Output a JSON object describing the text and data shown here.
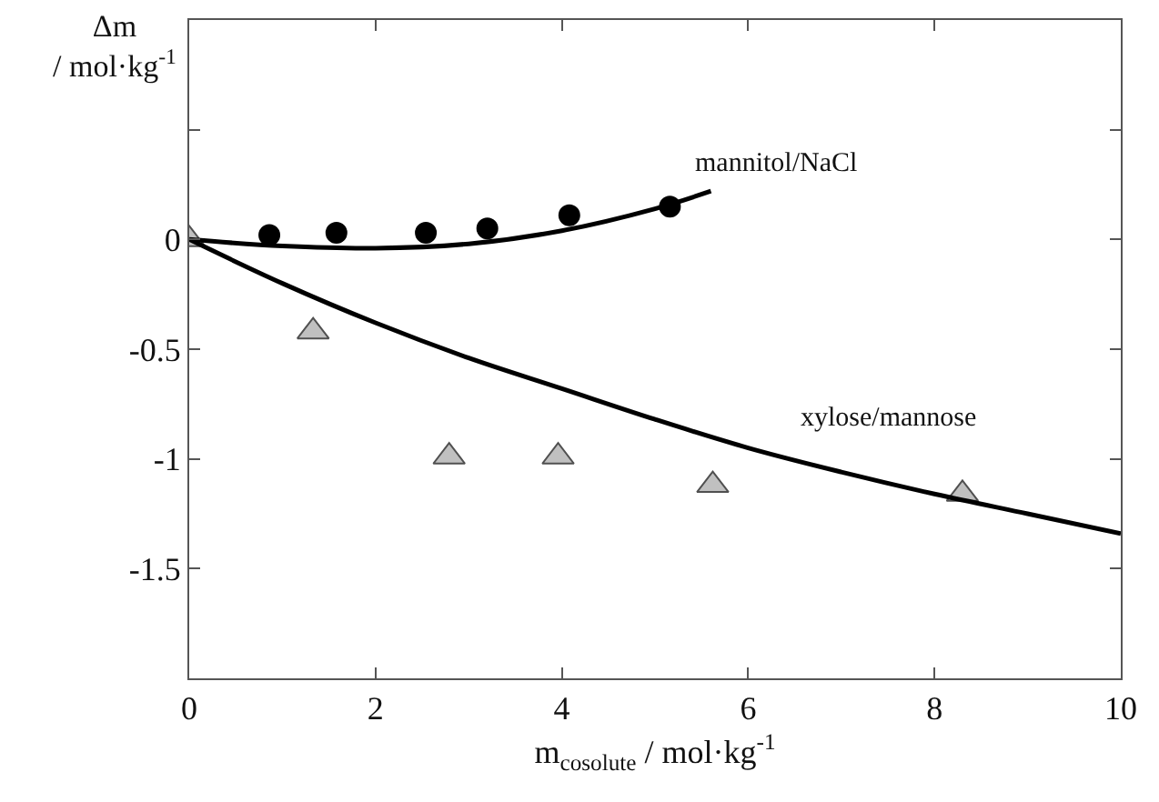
{
  "chart_data": {
    "type": "scatter",
    "xlabel": "m$_{cosolute}$ / mol·kg$^{-1}$",
    "ylabel": "Δm\n/ mol·kg$^{-1}$",
    "xlim": [
      0,
      10
    ],
    "ylim": [
      -2,
      1
    ],
    "xticks": [
      0,
      2,
      4,
      6,
      8,
      10
    ],
    "yticks": [
      {
        "value": 1,
        "label": null
      },
      {
        "value": 0.5,
        "label": null
      },
      0,
      -0.5,
      -1,
      -1.5
    ],
    "series": [
      {
        "marker": "circle",
        "color": "#000000",
        "x": [
          0.86,
          1.58,
          2.54,
          3.2,
          4.08,
          5.16
        ],
        "values": [
          0.02,
          0.03,
          0.03,
          0.05,
          0.11,
          0.15
        ]
      },
      {
        "marker": "triangle",
        "color": "#c0c0c0",
        "x": [
          0,
          1.33,
          2.79,
          3.96,
          5.62,
          8.3
        ],
        "values": [
          0,
          -0.42,
          -0.99,
          -0.99,
          -1.12,
          -1.16
        ]
      },
      {
        "type": "line",
        "marker": "none",
        "line_style": "solid",
        "color": "#000000",
        "x": [
          0,
          1,
          2,
          3,
          4,
          5,
          5.6
        ],
        "values": [
          0,
          -0.03,
          -0.04,
          -0.02,
          0.04,
          0.14,
          0.22
        ]
      },
      {
        "type": "line",
        "marker": "none",
        "line_style": "solid",
        "color": "#000000",
        "x": [
          0,
          1,
          2,
          3,
          4,
          5,
          6,
          7,
          8,
          9,
          10
        ],
        "values": [
          0,
          -0.2,
          -0.38,
          -0.54,
          -0.68,
          -0.82,
          -0.95,
          -1.06,
          -1.16,
          -1.25,
          -1.34
        ]
      }
    ],
    "annotations": [
      "mannitol/NaCl",
      "xylose/mannose"
    ]
  }
}
